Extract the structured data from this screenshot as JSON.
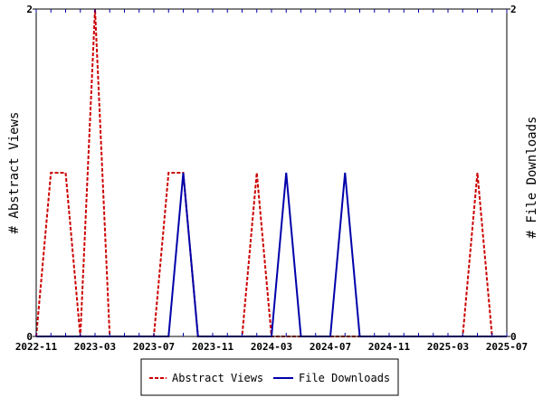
{
  "chart_data": {
    "type": "line",
    "title": "",
    "xlabel": "",
    "ylabel_left": "# Abstract Views",
    "ylabel_right": "# File Downloads",
    "x_tick_labels": [
      "2022-11",
      "2023-03",
      "2023-07",
      "2023-11",
      "2024-03",
      "2024-07",
      "2024-11",
      "2025-03",
      "2025-07"
    ],
    "y_ticks_left": [
      0,
      2
    ],
    "y_ticks_right": [
      0,
      2
    ],
    "ylim": [
      0,
      2
    ],
    "legend_position": "bottom",
    "colors": {
      "abstract_views": "#cc0000",
      "file_downloads": "#0000aa"
    },
    "months": [
      "2022-11",
      "2022-12",
      "2023-01",
      "2023-02",
      "2023-03",
      "2023-04",
      "2023-05",
      "2023-06",
      "2023-07",
      "2023-08",
      "2023-09",
      "2023-10",
      "2023-11",
      "2023-12",
      "2024-01",
      "2024-02",
      "2024-03",
      "2024-04",
      "2024-05",
      "2024-06",
      "2024-07",
      "2024-08",
      "2024-09",
      "2024-10",
      "2024-11",
      "2024-12",
      "2025-01",
      "2025-02",
      "2025-03",
      "2025-04",
      "2025-05",
      "2025-06",
      "2025-07"
    ],
    "series": [
      {
        "name": "Abstract Views",
        "values": [
          0,
          1,
          1,
          0,
          2,
          0,
          0,
          0,
          0,
          1,
          1,
          0,
          0,
          0,
          0,
          1,
          0,
          0,
          0,
          0,
          0,
          0,
          0,
          0,
          0,
          0,
          0,
          0,
          0,
          0,
          1,
          0,
          0
        ]
      },
      {
        "name": "File Downloads",
        "values": [
          0,
          0,
          0,
          0,
          0,
          0,
          0,
          0,
          0,
          0,
          1,
          0,
          0,
          0,
          0,
          0,
          0,
          1,
          0,
          0,
          0,
          1,
          0,
          0,
          0,
          0,
          0,
          0,
          0,
          0,
          0,
          0,
          0
        ]
      }
    ]
  }
}
